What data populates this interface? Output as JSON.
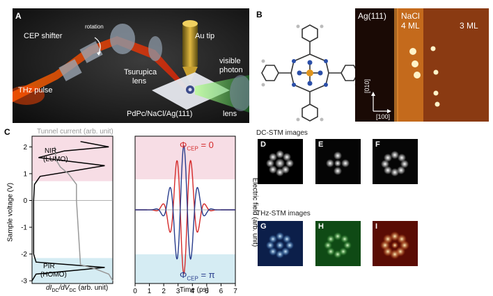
{
  "panels": {
    "A": "A",
    "B": "B",
    "C": "C",
    "D": "D",
    "E": "E",
    "F": "F",
    "G": "G",
    "H": "H",
    "I": "I"
  },
  "panelA": {
    "cep_shifter": "CEP shifter",
    "rotation": "rotation",
    "au_tip": "Au tip",
    "tsurupica": "Tsurupica",
    "tsurupica_lens": "lens",
    "visible": "visible",
    "photon": "photon",
    "thz_pulse": "THz pulse",
    "sample": "PdPc/NaCl/Ag(111)",
    "lens": "lens"
  },
  "panelB": {
    "ag": "Ag(111)",
    "nacl": "NaCl",
    "ml4": "4 ML",
    "ml3": "3 ML",
    "dir_010": "[010]",
    "dir_100": "[100]",
    "colors": {
      "terrace_dark": "#1a0a05",
      "terrace_4ml": "#c46a1c",
      "terrace_3ml": "#8a3a12",
      "molecule": "#fff3c8"
    }
  },
  "panelC": {
    "tunnel_current": "Tunnel current (arb. unit)",
    "ylabel": "Sample voltage (V)",
    "xlabel_left": "dI",
    "xlabel_left_sub1": "DC",
    "xlabel_left_mid": "/dV",
    "xlabel_left_sub2": "DC",
    "xlabel_left_end": " (arb. unit)",
    "nir": "NIR",
    "lumo": "(LUMO)",
    "pir": "PIR",
    "homo": "(HOMO)",
    "yticks": [
      "2",
      "1",
      "0",
      "-1",
      "-2",
      "-3"
    ],
    "xticks": [
      "0",
      "1",
      "2",
      "3",
      "4",
      "5",
      "6",
      "7"
    ],
    "xlabel_right": "Time (ps)",
    "ylabel_right": "Electric field (arb. unit)",
    "phi0_prefix": "Φ",
    "phi0_sub": "CEP",
    "phi0_suffix": " = 0",
    "phipi_prefix": "Φ",
    "phipi_sub": "CEP",
    "phipi_suffix": " = π",
    "colors": {
      "lumo_band": "#f7dde5",
      "homo_band": "#d5ecf3",
      "phi0": "#d42a2a",
      "phipi": "#283c8c"
    }
  },
  "chart_data": [
    {
      "type": "line",
      "title": "",
      "xlabel": "dI_DC/dV_DC (arb. unit)",
      "ylabel": "Sample voltage (V)",
      "ylim": [
        -3.1,
        2.4
      ],
      "series": [
        {
          "name": "dI/dV",
          "points": [
            [
              0.0,
              -3.0
            ],
            [
              0.05,
              -2.75
            ],
            [
              0.9,
              -2.5
            ],
            [
              0.05,
              -2.3
            ],
            [
              0.02,
              -2.0
            ],
            [
              0.02,
              0.0
            ],
            [
              0.03,
              0.6
            ],
            [
              0.1,
              0.9
            ],
            [
              0.9,
              1.3
            ],
            [
              0.08,
              1.6
            ],
            [
              0.4,
              1.85
            ],
            [
              0.95,
              2.0
            ],
            [
              0.6,
              2.2
            ]
          ]
        },
        {
          "name": "Tunnel current",
          "points": [
            [
              1.0,
              -3.0
            ],
            [
              0.95,
              -2.75
            ],
            [
              0.78,
              -2.55
            ],
            [
              0.6,
              -2.4
            ],
            [
              0.55,
              0.0
            ],
            [
              0.55,
              0.6
            ],
            [
              0.45,
              1.0
            ],
            [
              0.35,
              1.25
            ],
            [
              0.3,
              1.5
            ],
            [
              0.28,
              2.0
            ]
          ]
        }
      ],
      "annotations": [
        "NIR (LUMO)",
        "PIR (HOMO)"
      ],
      "bands": [
        {
          "from": 0.72,
          "to": 2.4,
          "label": "LUMO"
        },
        {
          "from": -3.1,
          "to": -2.15,
          "label": "HOMO"
        }
      ]
    },
    {
      "type": "line",
      "title": "",
      "xlabel": "Time (ps)",
      "ylabel": "Electric field (arb. unit)",
      "xlim": [
        0,
        7
      ],
      "series": [
        {
          "name": "ΦCEP = 0",
          "center": 3.4,
          "period": 1.0,
          "width": 0.95,
          "phase": 0
        },
        {
          "name": "ΦCEP = π",
          "center": 3.4,
          "period": 1.0,
          "width": 0.95,
          "phase": 3.14159
        }
      ]
    }
  ],
  "images": {
    "dc_title": "DC-STM images",
    "thz_title": "THz-STM images"
  }
}
